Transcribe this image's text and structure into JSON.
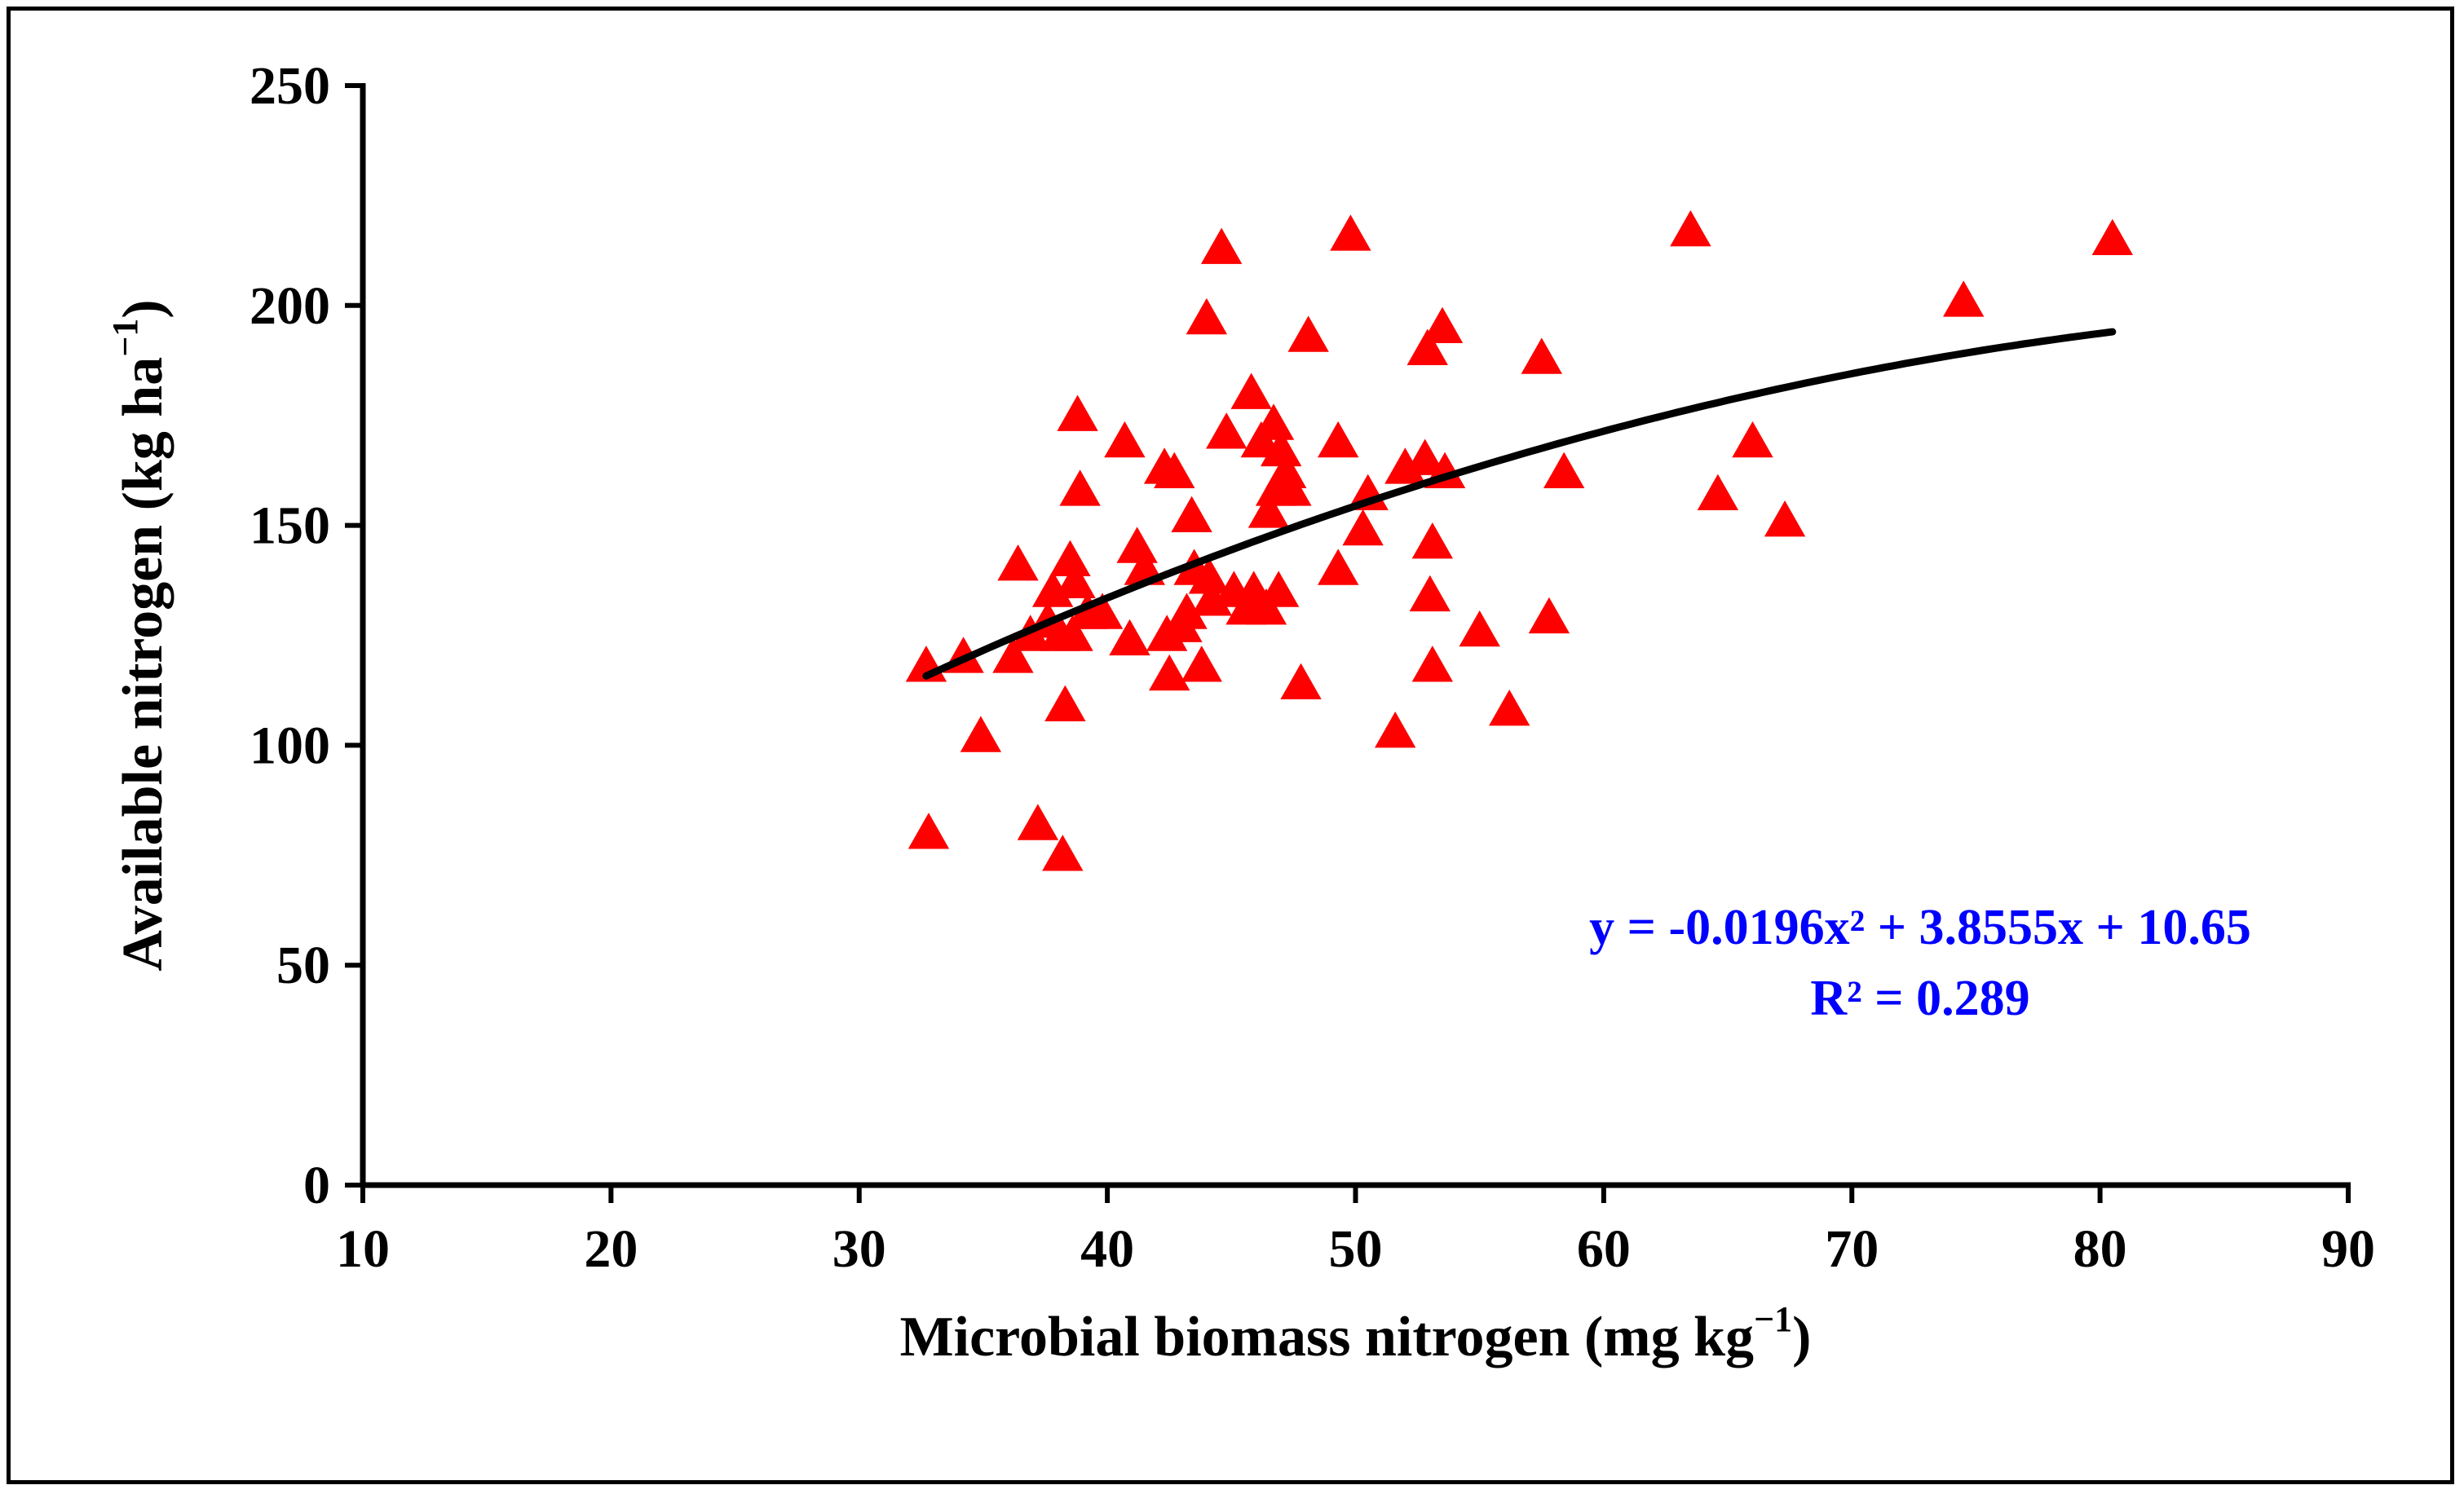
{
  "chart_data": {
    "type": "scatter",
    "title": "",
    "xlabel": "Microbial biomass nitrogen (mg kg",
    "xlabel_sup": "−1",
    "xlabel_end": ")",
    "ylabel": "Available nitrogen (kg ha",
    "ylabel_sup": "−1",
    "ylabel_end": ")",
    "xlim": [
      10,
      90
    ],
    "ylim": [
      0,
      250
    ],
    "x_ticks": [
      10,
      20,
      30,
      40,
      50,
      60,
      70,
      80,
      90
    ],
    "y_ticks": [
      0,
      50,
      100,
      150,
      200,
      250
    ],
    "grid": false,
    "legend": "none",
    "marker": "triangle",
    "marker_color": "#ff0000",
    "trend_color": "#000000",
    "annotation_color": "#0000ff",
    "equation_text": "y = -0.0196x² + 3.8555x + 10.65",
    "r2_text": "R² = 0.289",
    "trendline": {
      "type": "polynomial",
      "coefficients": [
        -0.0196,
        3.8555,
        10.65
      ],
      "x_range": [
        32.7,
        80.5
      ]
    },
    "points": [
      [
        32.7,
        118
      ],
      [
        32.8,
        80
      ],
      [
        34.2,
        120
      ],
      [
        34.9,
        102
      ],
      [
        36.2,
        120
      ],
      [
        36.4,
        141
      ],
      [
        36.9,
        125
      ],
      [
        37.2,
        82
      ],
      [
        37.6,
        128
      ],
      [
        37.8,
        135
      ],
      [
        38.1,
        125
      ],
      [
        38.2,
        75
      ],
      [
        38.3,
        109
      ],
      [
        38.5,
        142
      ],
      [
        38.6,
        125
      ],
      [
        38.7,
        137
      ],
      [
        38.8,
        175
      ],
      [
        38.9,
        158
      ],
      [
        39.2,
        130
      ],
      [
        39.8,
        130
      ],
      [
        40.7,
        169
      ],
      [
        40.9,
        124
      ],
      [
        41.2,
        145
      ],
      [
        41.5,
        140
      ],
      [
        42.3,
        163
      ],
      [
        42.4,
        125
      ],
      [
        42.5,
        116
      ],
      [
        42.7,
        162
      ],
      [
        43.0,
        127
      ],
      [
        43.2,
        130
      ],
      [
        43.4,
        152
      ],
      [
        43.5,
        140
      ],
      [
        43.8,
        118
      ],
      [
        44.0,
        197
      ],
      [
        44.1,
        138
      ],
      [
        44.2,
        133
      ],
      [
        44.6,
        213
      ],
      [
        44.8,
        171
      ],
      [
        45.1,
        135
      ],
      [
        45.6,
        131
      ],
      [
        45.8,
        180
      ],
      [
        45.9,
        135
      ],
      [
        46.2,
        169
      ],
      [
        46.4,
        131
      ],
      [
        46.5,
        153
      ],
      [
        46.7,
        173
      ],
      [
        46.8,
        158
      ],
      [
        46.9,
        135
      ],
      [
        47.0,
        167
      ],
      [
        47.2,
        162
      ],
      [
        47.4,
        158
      ],
      [
        47.8,
        114
      ],
      [
        48.1,
        193
      ],
      [
        49.3,
        140
      ],
      [
        49.3,
        169
      ],
      [
        49.8,
        216
      ],
      [
        50.3,
        149
      ],
      [
        50.5,
        157
      ],
      [
        51.6,
        103
      ],
      [
        52.0,
        163
      ],
      [
        52.8,
        165
      ],
      [
        52.9,
        190
      ],
      [
        53.0,
        134
      ],
      [
        53.1,
        118
      ],
      [
        53.1,
        146
      ],
      [
        53.5,
        195
      ],
      [
        53.6,
        162
      ],
      [
        55.0,
        126
      ],
      [
        56.2,
        108
      ],
      [
        57.5,
        188
      ],
      [
        57.8,
        129
      ],
      [
        58.4,
        162
      ],
      [
        63.5,
        217
      ],
      [
        64.6,
        157
      ],
      [
        66.0,
        169
      ],
      [
        67.3,
        151
      ],
      [
        74.5,
        201
      ],
      [
        80.5,
        215
      ]
    ]
  }
}
